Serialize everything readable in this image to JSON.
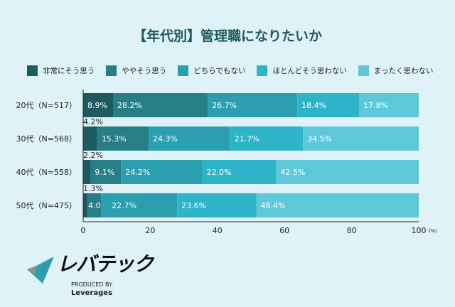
{
  "chart_data": {
    "type": "bar",
    "orientation": "horizontal",
    "stacked": true,
    "title": "【年代別】管理職になりたいか",
    "categories": [
      "20代（N=517）",
      "30代（N=568）",
      "40代（N=558）",
      "50代（N=475）"
    ],
    "series": [
      {
        "name": "非常にそう思う",
        "color": "#1e5b5f",
        "values": [
          8.9,
          4.2,
          2.2,
          1.3
        ]
      },
      {
        "name": "ややそう思う",
        "color": "#287e86",
        "values": [
          28.2,
          15.3,
          9.1,
          4.0
        ]
      },
      {
        "name": "どちらでもない",
        "color": "#2b9fb0",
        "values": [
          26.7,
          24.3,
          24.2,
          22.7
        ]
      },
      {
        "name": "ほとんどそう思わない",
        "color": "#2eb4c9",
        "values": [
          18.4,
          21.7,
          22.0,
          23.6
        ]
      },
      {
        "name": "まったく思わない",
        "color": "#5dc8da",
        "values": [
          17.8,
          34.5,
          42.5,
          48.4
        ]
      }
    ],
    "xlim": [
      0,
      100
    ],
    "xticks": [
      "0",
      "20",
      "40",
      "60",
      "80",
      "100"
    ],
    "xunit": "(%)",
    "legend_position": "top",
    "grid": false
  },
  "logo": {
    "brand": "レバテック",
    "produced_by": "PRODUCED BY",
    "company": "Leverages"
  }
}
